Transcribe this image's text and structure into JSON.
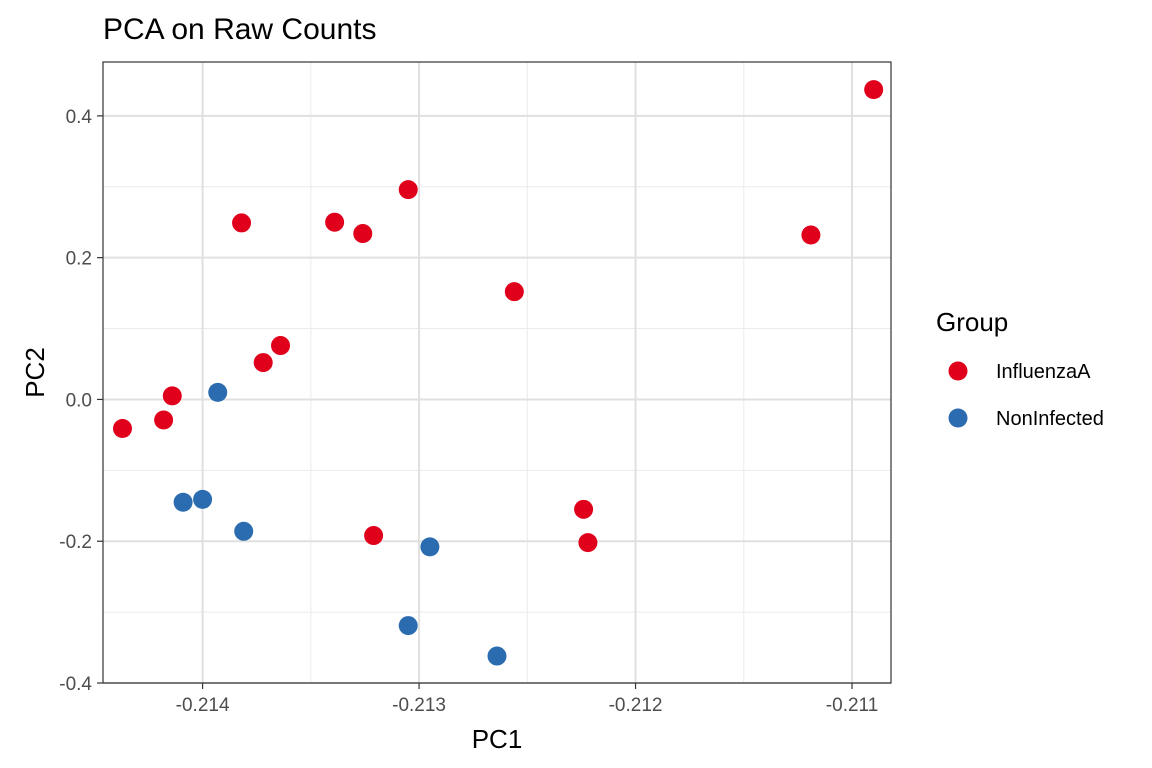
{
  "chart_data": {
    "type": "scatter",
    "title": "PCA on Raw Counts",
    "xlabel": "PC1",
    "ylabel": "PC2",
    "xlim": [
      -214.46,
      -210.82
    ],
    "ylim": [
      -0.4,
      0.476
    ],
    "x_scale_note": "x values are PC1 x 1000",
    "x_ticks": [
      -214,
      -213,
      -212,
      -211
    ],
    "x_tick_labels": [
      "-0.214",
      "-0.213",
      "-0.212",
      "-0.211"
    ],
    "y_ticks": [
      -0.4,
      -0.2,
      0.0,
      0.2,
      0.4
    ],
    "y_tick_labels": [
      "-0.4",
      "-0.2",
      "0.0",
      "0.2",
      "0.4"
    ],
    "grid": true,
    "legend": {
      "title": "Group",
      "placement": "right"
    },
    "series": [
      {
        "name": "InfluenzaA",
        "color": "#e0001b",
        "points": [
          [
            -210.9,
            0.437
          ],
          [
            -211.19,
            0.232
          ],
          [
            -213.05,
            0.296
          ],
          [
            -213.39,
            0.25
          ],
          [
            -213.26,
            0.234
          ],
          [
            -213.82,
            0.249
          ],
          [
            -212.56,
            0.152
          ],
          [
            -213.64,
            0.076
          ],
          [
            -213.72,
            0.052
          ],
          [
            -214.14,
            0.005
          ],
          [
            -214.18,
            -0.029
          ],
          [
            -214.37,
            -0.041
          ],
          [
            -212.24,
            -0.155
          ],
          [
            -212.22,
            -0.202
          ],
          [
            -213.21,
            -0.192
          ]
        ]
      },
      {
        "name": "NonInfected",
        "color": "#2b6cb0",
        "points": [
          [
            -213.93,
            0.01
          ],
          [
            -214.0,
            -0.141
          ],
          [
            -214.09,
            -0.145
          ],
          [
            -213.81,
            -0.186
          ],
          [
            -212.95,
            -0.208
          ],
          [
            -213.05,
            -0.319
          ],
          [
            -212.64,
            -0.362
          ]
        ]
      }
    ]
  }
}
